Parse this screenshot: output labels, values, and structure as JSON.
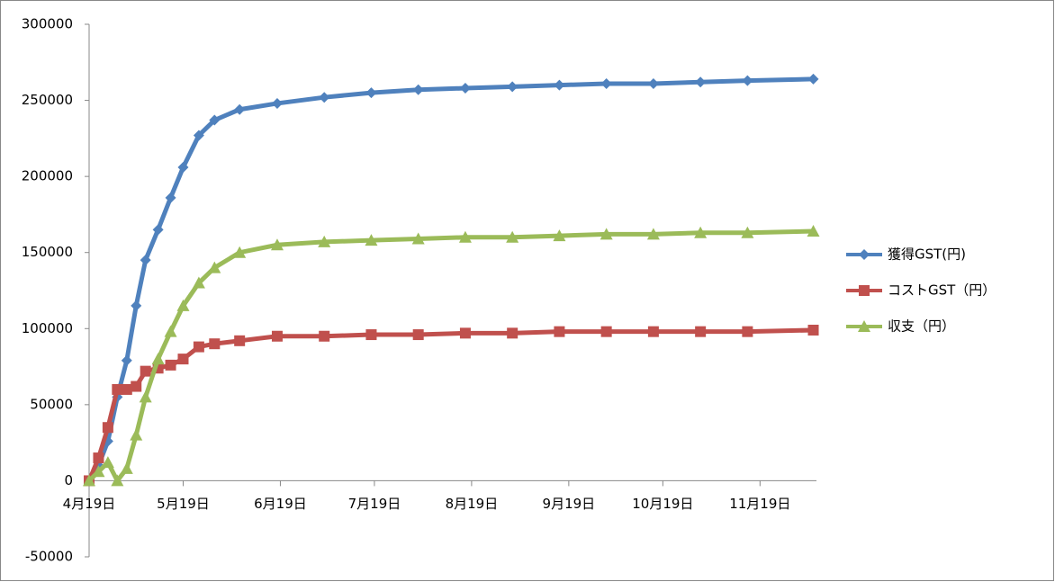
{
  "chart_data": {
    "type": "line",
    "x": [
      0,
      3,
      6,
      9,
      12,
      15,
      18,
      22,
      26,
      30,
      35,
      40,
      48,
      60,
      75,
      90,
      105,
      120,
      135,
      150,
      165,
      180,
      195,
      210,
      231
    ],
    "xlim": [
      0,
      232
    ],
    "xticks": [
      {
        "value": 0,
        "label": "4月19日"
      },
      {
        "value": 30,
        "label": "5月19日"
      },
      {
        "value": 61,
        "label": "6月19日"
      },
      {
        "value": 91,
        "label": "7月19日"
      },
      {
        "value": 122,
        "label": "8月19日"
      },
      {
        "value": 153,
        "label": "9月19日"
      },
      {
        "value": 183,
        "label": "10月19日"
      },
      {
        "value": 214,
        "label": "11月19日"
      }
    ],
    "ylim": [
      -50000,
      300000
    ],
    "yticks": [
      -50000,
      0,
      50000,
      100000,
      150000,
      200000,
      250000,
      300000
    ],
    "legend": "right",
    "series": [
      {
        "name": "獲得GST(円)",
        "color": "#4f81bd",
        "marker": "diamond",
        "values": [
          0,
          10000,
          26000,
          55000,
          79000,
          115000,
          145000,
          165000,
          186000,
          206000,
          227000,
          237000,
          244000,
          248000,
          252000,
          255000,
          257000,
          258000,
          259000,
          260000,
          261000,
          261000,
          262000,
          263000,
          264000
        ]
      },
      {
        "name": "コストGST（円）",
        "color": "#c0504d",
        "marker": "square",
        "values": [
          0,
          15000,
          35000,
          60000,
          60000,
          62000,
          72000,
          74000,
          76000,
          80000,
          88000,
          90000,
          92000,
          95000,
          95000,
          96000,
          96000,
          97000,
          97000,
          98000,
          98000,
          98000,
          98000,
          98000,
          99000
        ]
      },
      {
        "name": "収支（円）",
        "color": "#9bbb59",
        "marker": "triangle",
        "values": [
          0,
          6000,
          12000,
          0,
          8000,
          30000,
          55000,
          80000,
          98000,
          115000,
          130000,
          140000,
          150000,
          155000,
          157000,
          158000,
          159000,
          160000,
          160000,
          161000,
          162000,
          162000,
          163000,
          163000,
          164000
        ]
      }
    ]
  }
}
